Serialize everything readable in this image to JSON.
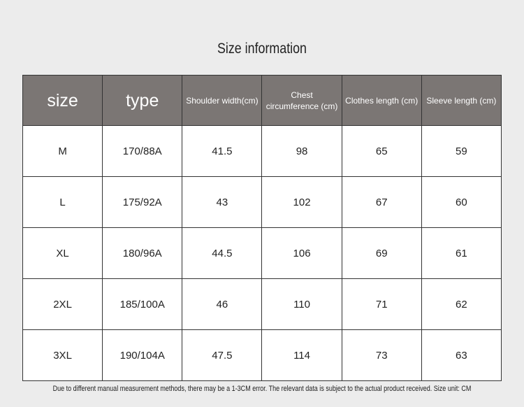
{
  "title": "Size information",
  "table": {
    "header": [
      "size",
      "type",
      "Shoulder width(cm)",
      "Chest circumference (cm)",
      "Clothes length (cm)",
      "Sleeve length (cm)"
    ],
    "rows": [
      [
        "M",
        "170/88A",
        41.5,
        98,
        65,
        59
      ],
      [
        "L",
        "175/92A",
        43,
        102,
        67,
        60
      ],
      [
        "XL",
        "180/96A",
        44.5,
        106,
        69,
        61
      ],
      [
        "2XL",
        "185/100A",
        46,
        110,
        71,
        62
      ],
      [
        "3XL",
        "190/104A",
        47.5,
        114,
        73,
        63
      ]
    ]
  },
  "note": "Due to different manual measurement methods, there may be a 1-3CM error. The relevant data is subject to the actual product received. Size unit: CM"
}
